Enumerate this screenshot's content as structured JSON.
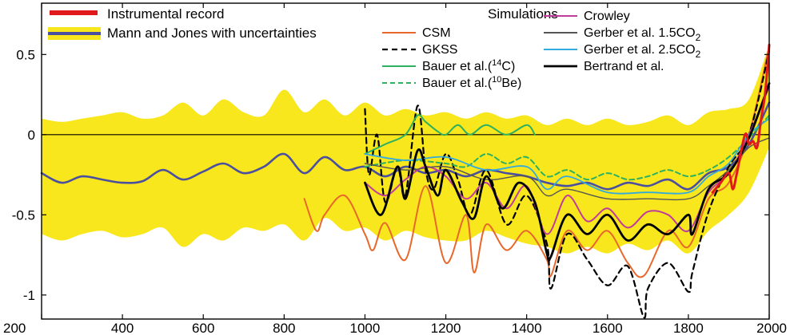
{
  "chart_data": {
    "type": "line",
    "title": "",
    "xlabel": "",
    "ylabel": "",
    "xlim": [
      200,
      2000
    ],
    "ylim": [
      -1.15,
      0.82
    ],
    "x_ticks": [
      200,
      400,
      600,
      800,
      1000,
      1200,
      1400,
      1600,
      1800,
      2000
    ],
    "y_ticks": [
      0.5,
      0,
      -0.5,
      -1
    ],
    "y_tick_labels": [
      "0.5",
      "0",
      "-0.5",
      "-1"
    ],
    "zero_line": 0,
    "legend": {
      "left_entries": [
        "Instrumental record",
        "Mann and Jones with uncertainties"
      ],
      "simulations_title": "Simulations",
      "sim_col1": [
        {
          "label": "CSM",
          "series": "CSM"
        },
        {
          "label": "GKSS",
          "series": "GKSS"
        },
        {
          "label": "Bauer et al.(",
          "sup": "14",
          "label_after": "C)",
          "series": "Bauer 14C"
        },
        {
          "label": "Bauer et al.(",
          "sup": "10",
          "label_after": "Be)",
          "series": "Bauer 10Be"
        }
      ],
      "sim_col2": [
        {
          "label": "Crowley",
          "series": "Crowley"
        },
        {
          "label": "Gerber et al. 1.5CO",
          "sub": "2",
          "series": "Gerber 1.5CO2"
        },
        {
          "label": "Gerber et al. 2.5CO",
          "sub": "2",
          "series": "Gerber 2.5CO2"
        },
        {
          "label": "Bertrand et al.",
          "series": "Bertrand"
        }
      ]
    },
    "band": {
      "name": "Mann and Jones uncertainty",
      "color": "#f8e71c",
      "x": [
        200,
        250,
        300,
        350,
        400,
        450,
        500,
        550,
        600,
        650,
        700,
        750,
        800,
        850,
        900,
        950,
        1000,
        1050,
        1100,
        1150,
        1200,
        1250,
        1300,
        1350,
        1400,
        1450,
        1500,
        1550,
        1600,
        1650,
        1700,
        1750,
        1800,
        1850,
        1900,
        1950,
        2000
      ],
      "upper": [
        0.1,
        0.08,
        0.1,
        0.12,
        0.14,
        0.1,
        0.12,
        0.2,
        0.12,
        0.22,
        0.14,
        0.12,
        0.28,
        0.14,
        0.22,
        0.12,
        0.2,
        0.12,
        0.16,
        0.12,
        0.14,
        0.1,
        0.14,
        0.1,
        0.12,
        0.06,
        0.1,
        0.06,
        0.1,
        0.06,
        0.08,
        0.12,
        0.06,
        0.14,
        0.16,
        0.22,
        0.56
      ],
      "lower": [
        -0.62,
        -0.66,
        -0.62,
        -0.6,
        -0.64,
        -0.62,
        -0.58,
        -0.7,
        -0.62,
        -0.66,
        -0.58,
        -0.6,
        -0.56,
        -0.66,
        -0.52,
        -0.6,
        -0.58,
        -0.66,
        -0.6,
        -0.64,
        -0.66,
        -0.66,
        -0.6,
        -0.64,
        -0.68,
        -0.7,
        -0.74,
        -0.7,
        -0.74,
        -0.68,
        -0.72,
        -0.66,
        -0.74,
        -0.6,
        -0.5,
        -0.36,
        -0.08
      ]
    },
    "series": [
      {
        "name": "Mann and Jones",
        "color": "#4b4fa0",
        "width": 2.6,
        "dash": "",
        "x": [
          200,
          250,
          300,
          350,
          400,
          450,
          500,
          550,
          600,
          650,
          700,
          750,
          800,
          850,
          900,
          950,
          1000,
          1050,
          1100,
          1150,
          1200,
          1250,
          1300,
          1350,
          1400,
          1450,
          1500,
          1550,
          1600,
          1650,
          1700,
          1750,
          1800,
          1850,
          1900,
          1950,
          2000
        ],
        "y": [
          -0.24,
          -0.3,
          -0.26,
          -0.28,
          -0.3,
          -0.29,
          -0.22,
          -0.28,
          -0.23,
          -0.18,
          -0.24,
          -0.2,
          -0.12,
          -0.24,
          -0.14,
          -0.22,
          -0.2,
          -0.26,
          -0.2,
          -0.24,
          -0.22,
          -0.26,
          -0.22,
          -0.24,
          -0.26,
          -0.3,
          -0.32,
          -0.3,
          -0.34,
          -0.3,
          -0.32,
          -0.28,
          -0.34,
          -0.24,
          -0.2,
          -0.06,
          0.2
        ]
      },
      {
        "name": "CSM",
        "color": "#e8682c",
        "width": 2.0,
        "dash": "",
        "x": [
          850,
          880,
          900,
          950,
          1000,
          1020,
          1050,
          1100,
          1150,
          1200,
          1250,
          1270,
          1300,
          1350,
          1400,
          1450,
          1460,
          1500,
          1550,
          1600,
          1650,
          1690,
          1750,
          1800,
          1850,
          1900,
          1950,
          2000
        ],
        "y": [
          -0.4,
          -0.6,
          -0.5,
          -0.38,
          -0.62,
          -0.72,
          -0.55,
          -0.78,
          -0.32,
          -0.8,
          -0.5,
          -0.86,
          -0.56,
          -0.72,
          -0.6,
          -0.78,
          -0.88,
          -0.6,
          -0.72,
          -0.6,
          -0.8,
          -0.88,
          -0.6,
          -0.7,
          -0.4,
          -0.3,
          0.0,
          0.55
        ]
      },
      {
        "name": "GKSS",
        "color": "#000000",
        "width": 2.2,
        "dash": "7,5",
        "x": [
          1000,
          1010,
          1030,
          1050,
          1080,
          1100,
          1130,
          1150,
          1170,
          1200,
          1230,
          1260,
          1300,
          1350,
          1400,
          1450,
          1460,
          1500,
          1550,
          1600,
          1650,
          1690,
          1700,
          1750,
          1800,
          1810,
          1850,
          1900,
          1950,
          2000
        ],
        "y": [
          0.16,
          -0.25,
          0.0,
          -0.42,
          -0.2,
          -0.38,
          0.18,
          -0.22,
          -0.34,
          -0.12,
          -0.28,
          -0.5,
          -0.22,
          -0.56,
          -0.38,
          -0.68,
          -0.96,
          -0.62,
          -0.78,
          -0.94,
          -0.82,
          -1.14,
          -0.96,
          -0.8,
          -0.98,
          -0.86,
          -0.48,
          -0.2,
          0.0,
          0.52
        ]
      },
      {
        "name": "Bauer 14C",
        "color": "#2db060",
        "width": 2.0,
        "dash": "",
        "x": [
          1000,
          1050,
          1100,
          1130,
          1150,
          1180,
          1200,
          1230,
          1260,
          1300,
          1350,
          1400,
          1420
        ],
        "y": [
          -0.12,
          -0.06,
          0.0,
          0.12,
          0.08,
          0.02,
          0.0,
          0.06,
          0.0,
          0.06,
          0.0,
          0.06,
          0.0
        ]
      },
      {
        "name": "Bauer 10Be",
        "color": "#2db060",
        "width": 2.0,
        "dash": "6,4",
        "x": [
          1000,
          1100,
          1200,
          1250,
          1300,
          1350,
          1400,
          1450,
          1500,
          1550,
          1600,
          1650,
          1700,
          1750,
          1800,
          1850,
          1900,
          1950,
          2000
        ],
        "y": [
          -0.2,
          -0.16,
          -0.18,
          -0.2,
          -0.12,
          -0.18,
          -0.14,
          -0.26,
          -0.22,
          -0.28,
          -0.24,
          -0.28,
          -0.26,
          -0.22,
          -0.26,
          -0.22,
          -0.14,
          -0.02,
          0.12
        ]
      },
      {
        "name": "Crowley",
        "color": "#c03c9c",
        "width": 2.0,
        "dash": "",
        "x": [
          1000,
          1050,
          1100,
          1150,
          1200,
          1250,
          1300,
          1350,
          1400,
          1450,
          1500,
          1550,
          1600,
          1650,
          1700,
          1750,
          1800,
          1850,
          1900,
          1950,
          2000
        ],
        "y": [
          -0.3,
          -0.38,
          -0.28,
          -0.2,
          -0.26,
          -0.4,
          -0.3,
          -0.46,
          -0.32,
          -0.62,
          -0.38,
          -0.54,
          -0.46,
          -0.58,
          -0.48,
          -0.5,
          -0.6,
          -0.36,
          -0.24,
          0.0,
          0.3
        ]
      },
      {
        "name": "Gerber 1.5CO2",
        "color": "#555555",
        "width": 1.4,
        "dash": "",
        "x": [
          1000,
          1100,
          1200,
          1300,
          1400,
          1450,
          1500,
          1600,
          1700,
          1800,
          1850,
          1900,
          1950,
          2000
        ],
        "y": [
          -0.18,
          -0.22,
          -0.2,
          -0.28,
          -0.26,
          -0.38,
          -0.34,
          -0.4,
          -0.4,
          -0.4,
          -0.32,
          -0.22,
          -0.08,
          -0.02
        ]
      },
      {
        "name": "Gerber 2.5CO2",
        "color": "#33aadd",
        "width": 1.8,
        "dash": "",
        "x": [
          1000,
          1100,
          1200,
          1300,
          1400,
          1450,
          1500,
          1600,
          1700,
          1800,
          1850,
          1900,
          1950,
          2000
        ],
        "y": [
          -0.12,
          -0.16,
          -0.14,
          -0.22,
          -0.2,
          -0.34,
          -0.26,
          -0.36,
          -0.36,
          -0.36,
          -0.26,
          -0.18,
          0.0,
          0.1
        ]
      },
      {
        "name": "Bertrand",
        "color": "#000000",
        "width": 2.8,
        "dash": "",
        "x": [
          1000,
          1040,
          1080,
          1100,
          1130,
          1150,
          1180,
          1200,
          1240,
          1270,
          1300,
          1340,
          1380,
          1420,
          1450,
          1460,
          1500,
          1550,
          1600,
          1650,
          1700,
          1750,
          1800,
          1810,
          1850,
          1900,
          1950,
          2000
        ],
        "y": [
          -0.3,
          -0.5,
          -0.2,
          -0.4,
          -0.1,
          -0.2,
          -0.38,
          -0.22,
          -0.42,
          -0.52,
          -0.26,
          -0.46,
          -0.3,
          -0.42,
          -0.74,
          -0.76,
          -0.5,
          -0.62,
          -0.5,
          -0.66,
          -0.56,
          -0.62,
          -0.5,
          -0.62,
          -0.34,
          -0.24,
          -0.02,
          0.32
        ]
      },
      {
        "name": "Instrumental record",
        "color": "#e01a1a",
        "width": 3.0,
        "dash": "",
        "x": [
          1860,
          1880,
          1900,
          1910,
          1920,
          1940,
          1950,
          1960,
          1970,
          1980,
          1990,
          2000
        ],
        "y": [
          -0.36,
          -0.3,
          -0.24,
          -0.34,
          -0.24,
          0.0,
          -0.06,
          -0.04,
          -0.08,
          0.1,
          0.26,
          0.56
        ]
      }
    ]
  }
}
